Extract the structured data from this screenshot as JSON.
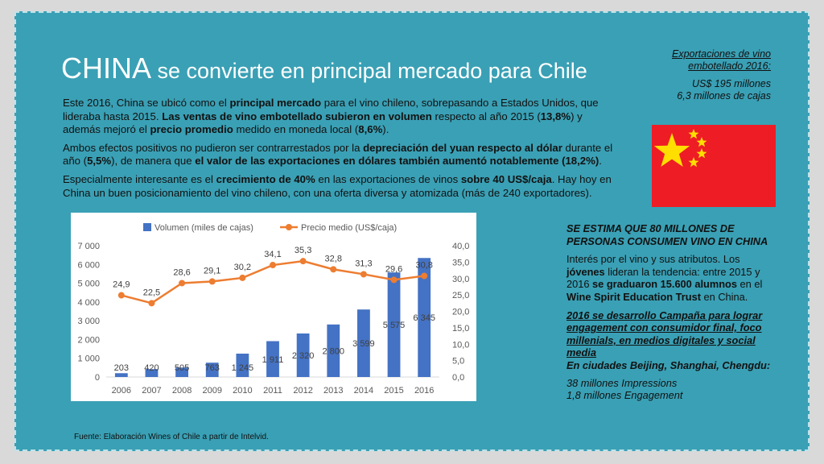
{
  "title": {
    "main": "CHINA",
    "rest": " se convierte en principal mercado para Chile"
  },
  "body": {
    "p1": [
      {
        "t": "Este 2016, China se ubicó como el ",
        "b": false
      },
      {
        "t": "principal mercado",
        "b": true
      },
      {
        "t": " para el vino chileno, sobrepasando a Estados Unidos, que lideraba hasta 2015. ",
        "b": false
      },
      {
        "t": "Las ventas de vino embotellado subieron en volumen",
        "b": true
      },
      {
        "t": " respecto al año 2015 (",
        "b": false
      },
      {
        "t": "13,8%",
        "b": true
      },
      {
        "t": ") y además mejoró el ",
        "b": false
      },
      {
        "t": "precio promedio",
        "b": true
      },
      {
        "t": " medido en moneda local (",
        "b": false
      },
      {
        "t": "8,6%",
        "b": true
      },
      {
        "t": ").",
        "b": false
      }
    ],
    "p2": [
      {
        "t": "Ambos efectos positivos no pudieron ser contrarrestados por la ",
        "b": false
      },
      {
        "t": "depreciación del yuan respecto al dólar",
        "b": true
      },
      {
        "t": " durante el año (",
        "b": false
      },
      {
        "t": "5,5%",
        "b": true
      },
      {
        "t": "), de manera que ",
        "b": false
      },
      {
        "t": "el valor de las exportaciones en dólares también aumentó notablemente (18,2%)",
        "b": true
      },
      {
        "t": ".",
        "b": false
      }
    ],
    "p3": [
      {
        "t": "Especialmente interesante es el ",
        "b": false
      },
      {
        "t": "crecimiento de 40%",
        "b": true
      },
      {
        "t": " en las exportaciones de vinos ",
        "b": false
      },
      {
        "t": "sobre 40 US$/caja",
        "b": true
      },
      {
        "t": ". Hay hoy en China un buen posicionamiento del vino chileno, con una oferta diversa y atomizada (más de 240 exportadores).",
        "b": false
      }
    ]
  },
  "exports": {
    "header": "Exportaciones de vino embotellado 2016:",
    "line1": "US$ 195 millones",
    "line2": "6,3 millones de cajas"
  },
  "right": {
    "p1": "SE ESTIMA QUE 80 MILLONES DE PERSONAS CONSUMEN VINO EN CHINA",
    "p2": [
      {
        "t": "Interés por el vino y sus atributos. Los ",
        "b": false
      },
      {
        "t": "jóvenes",
        "b": true
      },
      {
        "t": " lideran la tendencia: entre 2015 y 2016 ",
        "b": false
      },
      {
        "t": "se graduaron 15.600 alumnos",
        "b": true
      },
      {
        "t": " en el ",
        "b": false
      },
      {
        "t": "Wine Spirit Education Trust",
        "b": true
      },
      {
        "t": " en China.",
        "b": false
      }
    ],
    "p3a": "2016 se desarrollo Campaña  para lograr engagement  con consumidor final, foco millenials, en medios digitales y social media",
    "p3b": "En ciudades Beijing, Shanghai, Chengdu:",
    "p4a": "38 millones Impressions",
    "p4b": "1,8 millones Engagement"
  },
  "source": "Fuente: Elaboración Wines of Chile a partir de Intelvid.",
  "colors": {
    "bar": "#4472c4",
    "line": "#ed7d31",
    "flag": "#ee1c25",
    "star": "#ffde00",
    "background": "#3aa0b5"
  },
  "chart_data": {
    "type": "bar",
    "categories": [
      "2006",
      "2007",
      "2008",
      "2009",
      "2010",
      "2011",
      "2012",
      "2013",
      "2014",
      "2015",
      "2016"
    ],
    "series": [
      {
        "name": "Volumen (miles de cajas)",
        "type": "bar",
        "axis": "left",
        "values": [
          203,
          420,
          505,
          763,
          1245,
          1911,
          2320,
          2800,
          3599,
          5575,
          6345
        ],
        "labels": [
          "203",
          "420",
          "505",
          "763",
          "1 245",
          "1 911",
          "2 320",
          "2 800",
          "3 599",
          "5 575",
          "6 345"
        ]
      },
      {
        "name": "Precio medio (US$/caja)",
        "type": "line",
        "axis": "right",
        "values": [
          24.9,
          22.5,
          28.6,
          29.1,
          30.2,
          34.1,
          35.3,
          32.8,
          31.3,
          29.6,
          30.8
        ],
        "labels": [
          "24,9",
          "22,5",
          "28,6",
          "29,1",
          "30,2",
          "34,1",
          "35,3",
          "32,8",
          "31,3",
          "29,6",
          "30,8"
        ]
      }
    ],
    "ylim": [
      0,
      7000
    ],
    "y2lim": [
      0,
      40
    ],
    "yticks": [
      "0",
      "1 000",
      "2 000",
      "3 000",
      "4 000",
      "5 000",
      "6 000",
      "7 000"
    ],
    "y2ticks": [
      "0,0",
      "5,0",
      "10,0",
      "15,0",
      "20,0",
      "25,0",
      "30,0",
      "35,0",
      "40,0"
    ],
    "legend": "top",
    "grid": false
  }
}
